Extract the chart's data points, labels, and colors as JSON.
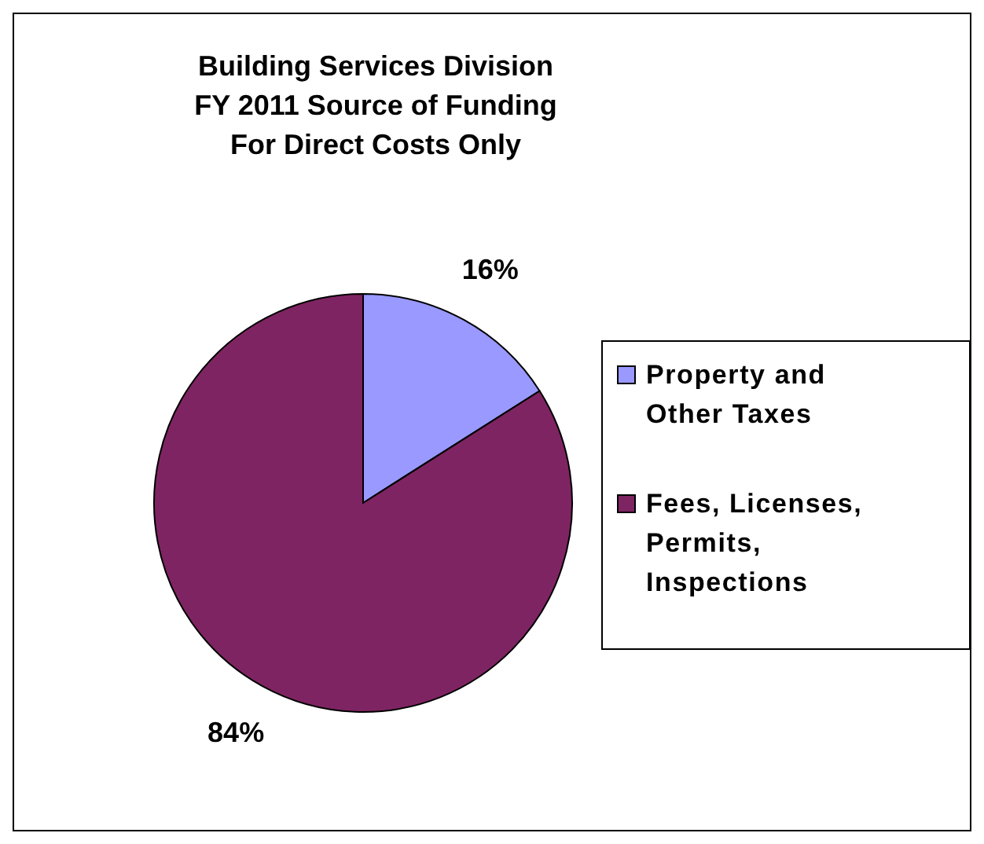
{
  "chart_data": {
    "type": "pie",
    "title": "Building Services Division\nFY 2011 Source of Funding\nFor Direct Costs Only",
    "categories": [
      "Property and Other Taxes",
      "Fees, Licenses, Permits, Inspections"
    ],
    "values": [
      16,
      84
    ],
    "colors": [
      "#9999ff",
      "#7f2462"
    ],
    "value_labels": [
      "16%",
      "84%"
    ],
    "legend": "right"
  }
}
